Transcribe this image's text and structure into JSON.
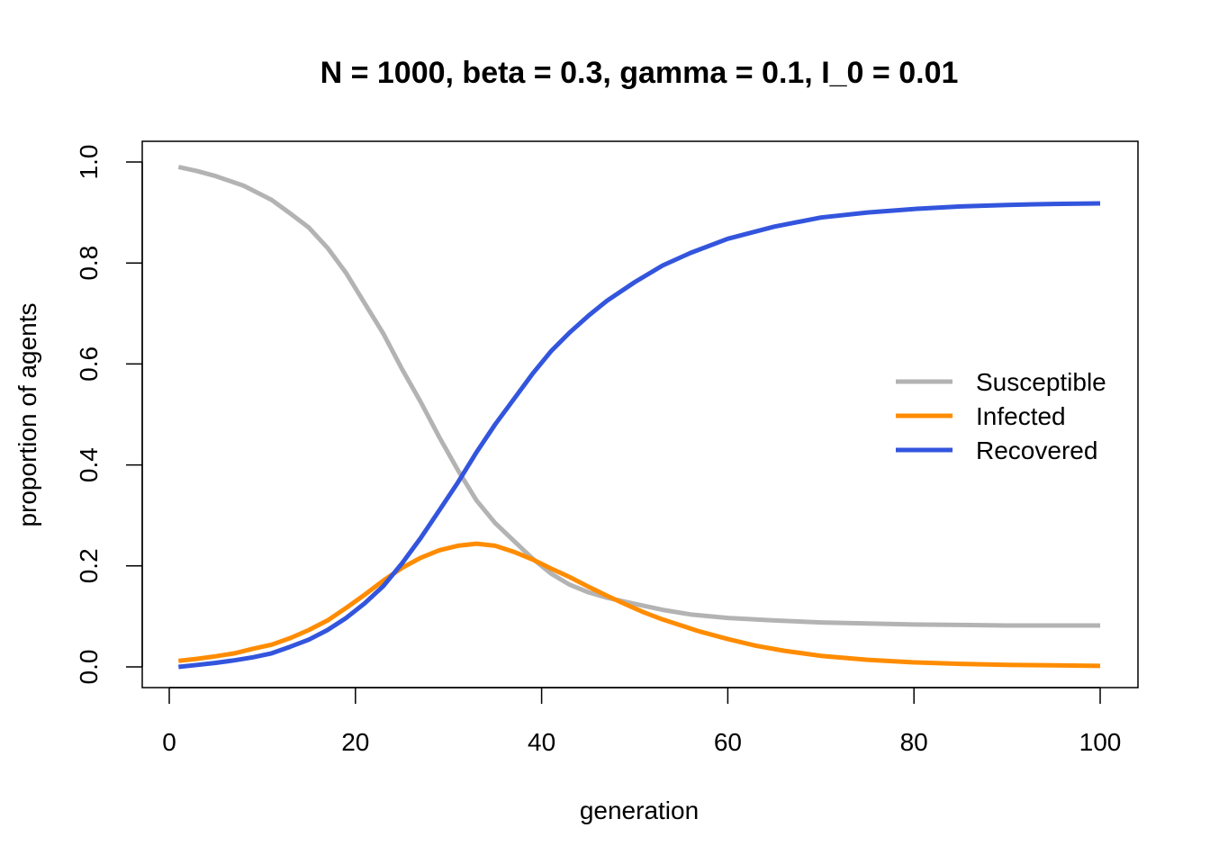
{
  "chart_data": {
    "type": "line",
    "title": "N = 1000, beta = 0.3, gamma = 0.1, I_0 = 0.01",
    "xlabel": "generation",
    "ylabel": "proportion of agents",
    "xlim": [
      1,
      100
    ],
    "ylim": [
      0,
      1
    ],
    "x_ticks": [
      0,
      20,
      40,
      60,
      80,
      100
    ],
    "y_ticks": [
      0.0,
      0.2,
      0.4,
      0.6,
      0.8,
      1.0
    ],
    "x_tick_labels": [
      "0",
      "20",
      "40",
      "60",
      "80",
      "100"
    ],
    "y_tick_labels": [
      "0.0",
      "0.2",
      "0.4",
      "0.6",
      "0.8",
      "1.0"
    ],
    "grid": false,
    "legend_position": "right",
    "series": [
      {
        "name": "Susceptible",
        "color": "#b3b3b3",
        "points": [
          [
            1,
            0.99
          ],
          [
            3,
            0.982
          ],
          [
            5,
            0.972
          ],
          [
            8,
            0.953
          ],
          [
            11,
            0.925
          ],
          [
            13,
            0.898
          ],
          [
            15,
            0.87
          ],
          [
            17,
            0.83
          ],
          [
            19,
            0.78
          ],
          [
            21,
            0.72
          ],
          [
            23,
            0.66
          ],
          [
            25,
            0.59
          ],
          [
            27,
            0.525
          ],
          [
            29,
            0.455
          ],
          [
            31,
            0.39
          ],
          [
            33,
            0.33
          ],
          [
            35,
            0.285
          ],
          [
            37,
            0.25
          ],
          [
            39,
            0.215
          ],
          [
            41,
            0.185
          ],
          [
            43,
            0.163
          ],
          [
            45,
            0.148
          ],
          [
            47,
            0.137
          ],
          [
            50,
            0.125
          ],
          [
            53,
            0.113
          ],
          [
            56,
            0.104
          ],
          [
            60,
            0.097
          ],
          [
            65,
            0.092
          ],
          [
            70,
            0.088
          ],
          [
            75,
            0.086
          ],
          [
            80,
            0.084
          ],
          [
            85,
            0.083
          ],
          [
            90,
            0.082
          ],
          [
            95,
            0.082
          ],
          [
            100,
            0.082
          ]
        ]
      },
      {
        "name": "Infected",
        "color": "#ff8c00",
        "points": [
          [
            1,
            0.012
          ],
          [
            3,
            0.016
          ],
          [
            5,
            0.021
          ],
          [
            7,
            0.027
          ],
          [
            9,
            0.036
          ],
          [
            11,
            0.044
          ],
          [
            13,
            0.057
          ],
          [
            15,
            0.073
          ],
          [
            17,
            0.092
          ],
          [
            19,
            0.117
          ],
          [
            21,
            0.143
          ],
          [
            23,
            0.171
          ],
          [
            25,
            0.196
          ],
          [
            27,
            0.216
          ],
          [
            29,
            0.231
          ],
          [
            31,
            0.24
          ],
          [
            33,
            0.244
          ],
          [
            35,
            0.24
          ],
          [
            37,
            0.228
          ],
          [
            39,
            0.213
          ],
          [
            41,
            0.195
          ],
          [
            43,
            0.178
          ],
          [
            45,
            0.159
          ],
          [
            47,
            0.141
          ],
          [
            49,
            0.124
          ],
          [
            51,
            0.108
          ],
          [
            53,
            0.094
          ],
          [
            55,
            0.082
          ],
          [
            57,
            0.07
          ],
          [
            60,
            0.055
          ],
          [
            63,
            0.042
          ],
          [
            66,
            0.032
          ],
          [
            70,
            0.022
          ],
          [
            75,
            0.014
          ],
          [
            80,
            0.009
          ],
          [
            85,
            0.006
          ],
          [
            90,
            0.004
          ],
          [
            95,
            0.003
          ],
          [
            100,
            0.002
          ]
        ]
      },
      {
        "name": "Recovered",
        "color": "#3355dd",
        "points": [
          [
            1,
            0.0
          ],
          [
            3,
            0.004
          ],
          [
            5,
            0.008
          ],
          [
            7,
            0.013
          ],
          [
            9,
            0.019
          ],
          [
            11,
            0.027
          ],
          [
            13,
            0.04
          ],
          [
            15,
            0.054
          ],
          [
            17,
            0.073
          ],
          [
            19,
            0.097
          ],
          [
            21,
            0.126
          ],
          [
            23,
            0.16
          ],
          [
            25,
            0.205
          ],
          [
            27,
            0.255
          ],
          [
            29,
            0.31
          ],
          [
            31,
            0.365
          ],
          [
            33,
            0.425
          ],
          [
            35,
            0.48
          ],
          [
            37,
            0.53
          ],
          [
            39,
            0.58
          ],
          [
            41,
            0.625
          ],
          [
            43,
            0.662
          ],
          [
            45,
            0.695
          ],
          [
            47,
            0.725
          ],
          [
            50,
            0.762
          ],
          [
            53,
            0.795
          ],
          [
            56,
            0.82
          ],
          [
            60,
            0.848
          ],
          [
            65,
            0.872
          ],
          [
            70,
            0.89
          ],
          [
            75,
            0.9
          ],
          [
            80,
            0.907
          ],
          [
            85,
            0.912
          ],
          [
            90,
            0.915
          ],
          [
            95,
            0.917
          ],
          [
            100,
            0.918
          ]
        ]
      }
    ]
  }
}
